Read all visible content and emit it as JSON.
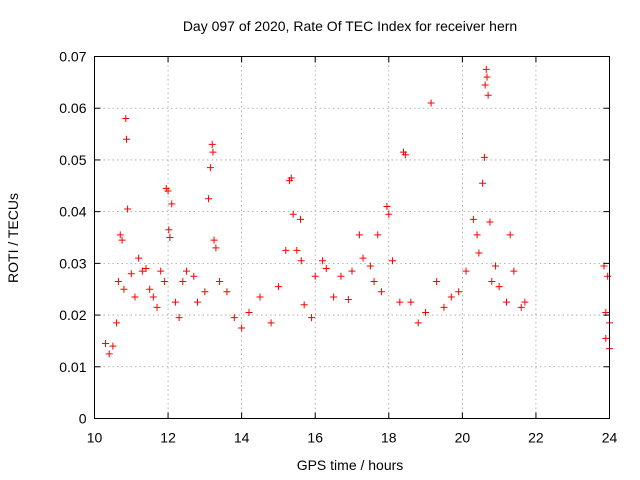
{
  "chart_data": {
    "type": "scatter",
    "title": "Day 097 of 2020, Rate Of TEC Index for receiver hern",
    "xlabel": "GPS time / hours",
    "ylabel": "ROTI / TECUs",
    "xlim": [
      10,
      24
    ],
    "ylim": [
      0,
      0.07
    ],
    "xticks": [
      "10",
      "12",
      "14",
      "16",
      "18",
      "20",
      "22",
      "24"
    ],
    "yticks": [
      "0",
      "0.01",
      "0.02",
      "0.03",
      "0.04",
      "0.05",
      "0.06",
      "0.07"
    ],
    "grid": true,
    "marker": "+",
    "series_color": "#ff0000",
    "points": [
      [
        10.3,
        0.0145
      ],
      [
        10.4,
        0.0125
      ],
      [
        10.5,
        0.014
      ],
      [
        10.6,
        0.0185
      ],
      [
        10.65,
        0.0265
      ],
      [
        10.7,
        0.0355
      ],
      [
        10.75,
        0.0345
      ],
      [
        10.8,
        0.025
      ],
      [
        10.85,
        0.058
      ],
      [
        10.87,
        0.054
      ],
      [
        10.9,
        0.0405
      ],
      [
        11.0,
        0.028
      ],
      [
        11.1,
        0.0235
      ],
      [
        11.2,
        0.031
      ],
      [
        11.3,
        0.0285
      ],
      [
        11.4,
        0.029
      ],
      [
        11.5,
        0.025
      ],
      [
        11.6,
        0.0235
      ],
      [
        11.7,
        0.0215
      ],
      [
        11.8,
        0.0285
      ],
      [
        11.9,
        0.0265
      ],
      [
        11.95,
        0.0445
      ],
      [
        12.0,
        0.044
      ],
      [
        12.02,
        0.0365
      ],
      [
        12.05,
        0.035
      ],
      [
        12.1,
        0.0415
      ],
      [
        12.2,
        0.0225
      ],
      [
        12.3,
        0.0195
      ],
      [
        12.4,
        0.0265
      ],
      [
        12.5,
        0.0285
      ],
      [
        12.7,
        0.0275
      ],
      [
        12.8,
        0.0225
      ],
      [
        13.0,
        0.0245
      ],
      [
        13.1,
        0.0425
      ],
      [
        13.15,
        0.0485
      ],
      [
        13.2,
        0.053
      ],
      [
        13.22,
        0.0515
      ],
      [
        13.25,
        0.0345
      ],
      [
        13.3,
        0.033
      ],
      [
        13.4,
        0.0265
      ],
      [
        13.6,
        0.0245
      ],
      [
        13.8,
        0.0195
      ],
      [
        14.0,
        0.0175
      ],
      [
        14.2,
        0.0205
      ],
      [
        14.5,
        0.0235
      ],
      [
        14.8,
        0.0185
      ],
      [
        15.0,
        0.0255
      ],
      [
        15.2,
        0.0325
      ],
      [
        15.3,
        0.046
      ],
      [
        15.35,
        0.0465
      ],
      [
        15.4,
        0.0395
      ],
      [
        15.5,
        0.0325
      ],
      [
        15.6,
        0.0385
      ],
      [
        15.62,
        0.0305
      ],
      [
        15.7,
        0.022
      ],
      [
        15.9,
        0.0195
      ],
      [
        16.0,
        0.0275
      ],
      [
        16.2,
        0.0305
      ],
      [
        16.3,
        0.029
      ],
      [
        16.5,
        0.0235
      ],
      [
        16.7,
        0.0275
      ],
      [
        16.9,
        0.023
      ],
      [
        17.0,
        0.0285
      ],
      [
        17.2,
        0.0355
      ],
      [
        17.3,
        0.031
      ],
      [
        17.5,
        0.0295
      ],
      [
        17.6,
        0.0265
      ],
      [
        17.7,
        0.0355
      ],
      [
        17.8,
        0.0245
      ],
      [
        17.95,
        0.041
      ],
      [
        18.0,
        0.0395
      ],
      [
        18.1,
        0.0305
      ],
      [
        18.3,
        0.0225
      ],
      [
        18.4,
        0.0515
      ],
      [
        18.45,
        0.051
      ],
      [
        18.6,
        0.0225
      ],
      [
        18.8,
        0.0185
      ],
      [
        19.0,
        0.0205
      ],
      [
        19.15,
        0.061
      ],
      [
        19.3,
        0.0265
      ],
      [
        19.5,
        0.0215
      ],
      [
        19.7,
        0.0235
      ],
      [
        19.9,
        0.0245
      ],
      [
        20.1,
        0.0285
      ],
      [
        20.3,
        0.0385
      ],
      [
        20.4,
        0.0355
      ],
      [
        20.45,
        0.032
      ],
      [
        20.55,
        0.0455
      ],
      [
        20.6,
        0.0505
      ],
      [
        20.62,
        0.0645
      ],
      [
        20.65,
        0.0675
      ],
      [
        20.67,
        0.066
      ],
      [
        20.7,
        0.0625
      ],
      [
        20.75,
        0.038
      ],
      [
        20.8,
        0.0265
      ],
      [
        20.9,
        0.0295
      ],
      [
        21.0,
        0.0255
      ],
      [
        21.2,
        0.0225
      ],
      [
        21.3,
        0.0355
      ],
      [
        21.4,
        0.0285
      ],
      [
        21.6,
        0.0215
      ],
      [
        21.7,
        0.0225
      ],
      [
        23.85,
        0.0295
      ],
      [
        23.9,
        0.0205
      ],
      [
        23.95,
        0.0275
      ],
      [
        24.0,
        0.0185
      ],
      [
        23.9,
        0.0155
      ],
      [
        24.0,
        0.0135
      ]
    ]
  }
}
